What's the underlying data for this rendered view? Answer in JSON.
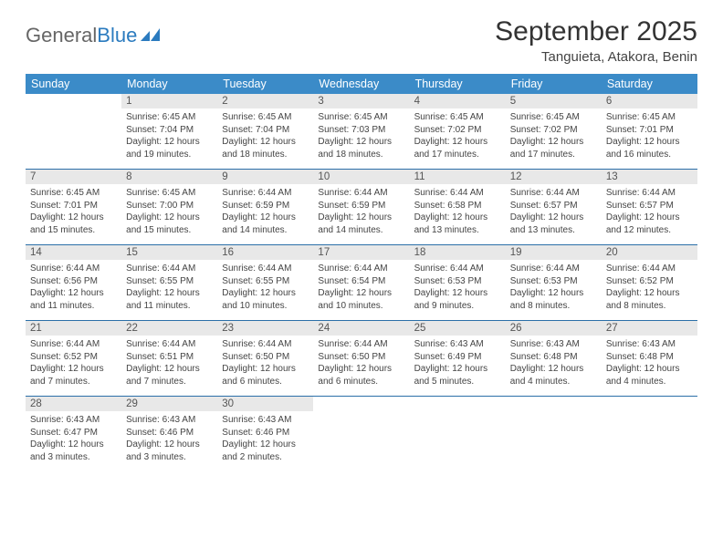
{
  "logo": {
    "part1": "General",
    "part2": "Blue"
  },
  "title": "September 2025",
  "location": "Tanguieta, Atakora, Benin",
  "headers": [
    "Sunday",
    "Monday",
    "Tuesday",
    "Wednesday",
    "Thursday",
    "Friday",
    "Saturday"
  ],
  "colors": {
    "header_bg": "#3b8bc8",
    "header_text": "#ffffff",
    "daynum_bg": "#e8e8e8",
    "week_sep": "#2b6fa8",
    "logo_gray": "#666666",
    "logo_blue": "#2b7bbf",
    "body_text": "#444444"
  },
  "weeks": [
    [
      null,
      {
        "n": "1",
        "sr": "6:45 AM",
        "ss": "7:04 PM",
        "dl": "12 hours and 19 minutes."
      },
      {
        "n": "2",
        "sr": "6:45 AM",
        "ss": "7:04 PM",
        "dl": "12 hours and 18 minutes."
      },
      {
        "n": "3",
        "sr": "6:45 AM",
        "ss": "7:03 PM",
        "dl": "12 hours and 18 minutes."
      },
      {
        "n": "4",
        "sr": "6:45 AM",
        "ss": "7:02 PM",
        "dl": "12 hours and 17 minutes."
      },
      {
        "n": "5",
        "sr": "6:45 AM",
        "ss": "7:02 PM",
        "dl": "12 hours and 17 minutes."
      },
      {
        "n": "6",
        "sr": "6:45 AM",
        "ss": "7:01 PM",
        "dl": "12 hours and 16 minutes."
      }
    ],
    [
      {
        "n": "7",
        "sr": "6:45 AM",
        "ss": "7:01 PM",
        "dl": "12 hours and 15 minutes."
      },
      {
        "n": "8",
        "sr": "6:45 AM",
        "ss": "7:00 PM",
        "dl": "12 hours and 15 minutes."
      },
      {
        "n": "9",
        "sr": "6:44 AM",
        "ss": "6:59 PM",
        "dl": "12 hours and 14 minutes."
      },
      {
        "n": "10",
        "sr": "6:44 AM",
        "ss": "6:59 PM",
        "dl": "12 hours and 14 minutes."
      },
      {
        "n": "11",
        "sr": "6:44 AM",
        "ss": "6:58 PM",
        "dl": "12 hours and 13 minutes."
      },
      {
        "n": "12",
        "sr": "6:44 AM",
        "ss": "6:57 PM",
        "dl": "12 hours and 13 minutes."
      },
      {
        "n": "13",
        "sr": "6:44 AM",
        "ss": "6:57 PM",
        "dl": "12 hours and 12 minutes."
      }
    ],
    [
      {
        "n": "14",
        "sr": "6:44 AM",
        "ss": "6:56 PM",
        "dl": "12 hours and 11 minutes."
      },
      {
        "n": "15",
        "sr": "6:44 AM",
        "ss": "6:55 PM",
        "dl": "12 hours and 11 minutes."
      },
      {
        "n": "16",
        "sr": "6:44 AM",
        "ss": "6:55 PM",
        "dl": "12 hours and 10 minutes."
      },
      {
        "n": "17",
        "sr": "6:44 AM",
        "ss": "6:54 PM",
        "dl": "12 hours and 10 minutes."
      },
      {
        "n": "18",
        "sr": "6:44 AM",
        "ss": "6:53 PM",
        "dl": "12 hours and 9 minutes."
      },
      {
        "n": "19",
        "sr": "6:44 AM",
        "ss": "6:53 PM",
        "dl": "12 hours and 8 minutes."
      },
      {
        "n": "20",
        "sr": "6:44 AM",
        "ss": "6:52 PM",
        "dl": "12 hours and 8 minutes."
      }
    ],
    [
      {
        "n": "21",
        "sr": "6:44 AM",
        "ss": "6:52 PM",
        "dl": "12 hours and 7 minutes."
      },
      {
        "n": "22",
        "sr": "6:44 AM",
        "ss": "6:51 PM",
        "dl": "12 hours and 7 minutes."
      },
      {
        "n": "23",
        "sr": "6:44 AM",
        "ss": "6:50 PM",
        "dl": "12 hours and 6 minutes."
      },
      {
        "n": "24",
        "sr": "6:44 AM",
        "ss": "6:50 PM",
        "dl": "12 hours and 6 minutes."
      },
      {
        "n": "25",
        "sr": "6:43 AM",
        "ss": "6:49 PM",
        "dl": "12 hours and 5 minutes."
      },
      {
        "n": "26",
        "sr": "6:43 AM",
        "ss": "6:48 PM",
        "dl": "12 hours and 4 minutes."
      },
      {
        "n": "27",
        "sr": "6:43 AM",
        "ss": "6:48 PM",
        "dl": "12 hours and 4 minutes."
      }
    ],
    [
      {
        "n": "28",
        "sr": "6:43 AM",
        "ss": "6:47 PM",
        "dl": "12 hours and 3 minutes."
      },
      {
        "n": "29",
        "sr": "6:43 AM",
        "ss": "6:46 PM",
        "dl": "12 hours and 3 minutes."
      },
      {
        "n": "30",
        "sr": "6:43 AM",
        "ss": "6:46 PM",
        "dl": "12 hours and 2 minutes."
      },
      null,
      null,
      null,
      null
    ]
  ],
  "labels": {
    "sunrise": "Sunrise:",
    "sunset": "Sunset:",
    "daylight": "Daylight:"
  }
}
